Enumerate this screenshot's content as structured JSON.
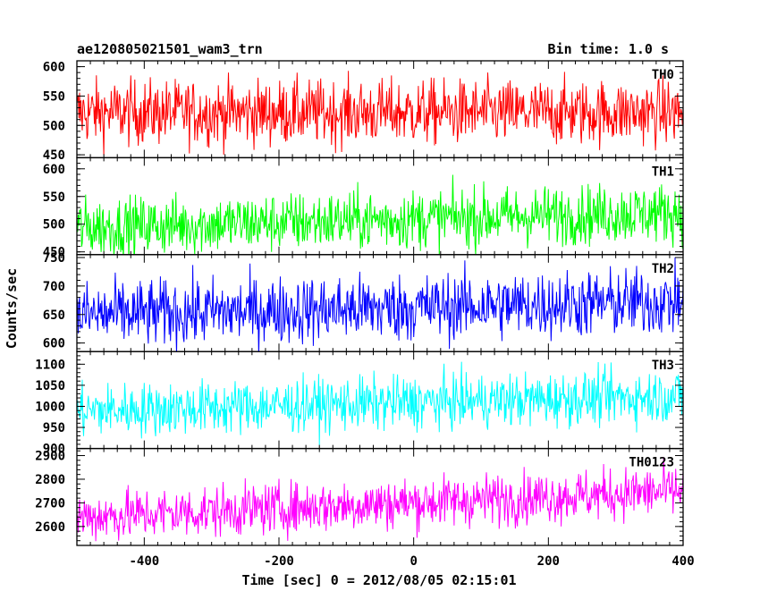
{
  "header": {
    "title": "ae120805021501_wam3_trn",
    "bin_time": "Bin time: 1.0 s"
  },
  "chart_data": {
    "type": "line",
    "title": "ae120805021501_wam3_trn",
    "xlabel": "Time [sec] 0 = 2012/08/05 02:15:01",
    "ylabel": "Counts/sec",
    "xlim": [
      -500,
      400
    ],
    "xticks": [
      -400,
      -200,
      0,
      200,
      400
    ],
    "grid": false,
    "legend": "none",
    "panels": [
      {
        "name": "TH0",
        "color": "#ff0000",
        "ylim": [
          445,
          610
        ],
        "yticks": [
          450,
          500,
          550,
          600
        ],
        "mean": 522,
        "spread": 28,
        "trend": 0
      },
      {
        "name": "TH1",
        "color": "#00ff00",
        "ylim": [
          445,
          620
        ],
        "yticks": [
          450,
          500,
          550,
          600
        ],
        "mean": 508,
        "spread": 27,
        "trend": 14
      },
      {
        "name": "TH2",
        "color": "#0000ff",
        "ylim": [
          585,
          755
        ],
        "yticks": [
          600,
          650,
          700,
          750
        ],
        "mean": 661,
        "spread": 30,
        "trend": 12
      },
      {
        "name": "TH3",
        "color": "#00ffff",
        "ylim": [
          900,
          1130
        ],
        "yticks": [
          900,
          950,
          1000,
          1050,
          1100
        ],
        "mean": 1007,
        "spread": 32,
        "trend": 18
      },
      {
        "name": "TH0123",
        "color": "#ff00ff",
        "ylim": [
          2520,
          2930
        ],
        "yticks": [
          2600,
          2700,
          2800,
          2900
        ],
        "mean": 2695,
        "spread": 55,
        "trend": 55
      }
    ]
  }
}
